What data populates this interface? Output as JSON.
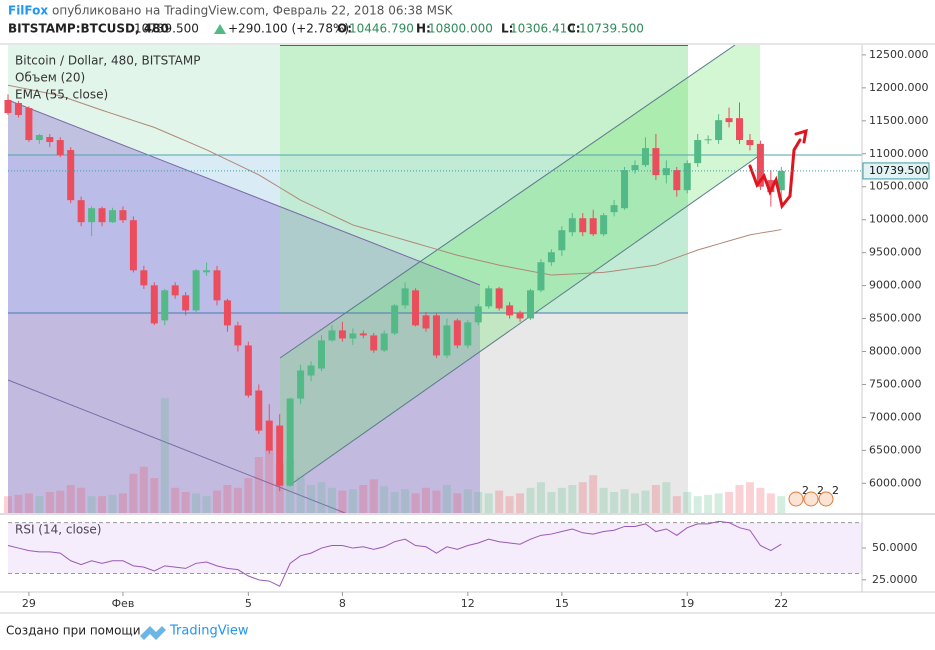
{
  "header": {
    "author": "FilFox",
    "published": "опубликовано на TradingView.com, Февраль 22, 2018 06:38 MSK",
    "symbol": "BITSTAMP:BTCUSD, 480",
    "price": "10739.500",
    "change": "+290.100 (+2.78%)",
    "ohlc": [
      {
        "key": "O:",
        "value": "10446.790"
      },
      {
        "key": "H:",
        "value": "10800.000"
      },
      {
        "key": "L:",
        "value": "10306.410"
      },
      {
        "key": "C:",
        "value": "10739.500"
      }
    ]
  },
  "chart_data": {
    "type": "candlestick",
    "title": "Bitcoin / Dollar, 480, BITSTAMP",
    "categories": [
      null,
      null,
      "29",
      null,
      null,
      null,
      null,
      null,
      null,
      null,
      null,
      "Фев",
      null,
      null,
      null,
      null,
      null,
      null,
      null,
      null,
      null,
      null,
      null,
      "5",
      null,
      null,
      null,
      null,
      null,
      null,
      null,
      null,
      "8",
      null,
      null,
      null,
      null,
      null,
      null,
      null,
      null,
      null,
      null,
      null,
      "12",
      null,
      null,
      null,
      null,
      null,
      null,
      null,
      null,
      "15",
      null,
      null,
      null,
      null,
      null,
      null,
      null,
      null,
      null,
      null,
      null,
      "19",
      null,
      null,
      null,
      null,
      null,
      null,
      null,
      null,
      "22"
    ],
    "open": [
      11816,
      11770,
      11694,
      11208,
      11254,
      11208,
      11056,
      10296,
      9962,
      10174,
      9962,
      10144,
      9992,
      9232,
      9004,
      8472,
      9004,
      8852,
      8624,
      9202,
      9232,
      8776,
      8396,
      8092,
      7408,
      6952,
      6876,
      5964,
      7286,
      7636,
      7742,
      8168,
      8320,
      8198,
      8274,
      8244,
      8016,
      8274,
      8700,
      8928,
      8548,
      8548,
      7940,
      8472,
      8092,
      8442,
      8685,
      8958,
      8700,
      8594,
      8502,
      8928,
      9354,
      9536,
      9810,
      10022,
      10022,
      9779,
      10114,
      10174,
      10752,
      10828,
      11086,
      10676,
      10752,
      10448,
      10858,
      11208,
      11208,
      11540,
      11540,
      11208,
      11150,
      10600,
      10446.79
    ],
    "high": [
      11900,
      11800,
      11720,
      11300,
      11300,
      11250,
      11100,
      10350,
      10200,
      10200,
      10180,
      10200,
      10050,
      9300,
      9050,
      8950,
      9050,
      8900,
      9250,
      9350,
      9300,
      8800,
      8450,
      8150,
      7500,
      7200,
      7050,
      7300,
      7800,
      7850,
      8250,
      8400,
      8450,
      8350,
      8320,
      8280,
      8320,
      8720,
      9050,
      8960,
      8600,
      8580,
      8500,
      8500,
      8480,
      8720,
      9000,
      8980,
      8750,
      8620,
      8950,
      9400,
      9550,
      9900,
      10100,
      10100,
      10150,
      10100,
      10300,
      10800,
      10900,
      11250,
      11300,
      10900,
      10800,
      10900,
      11300,
      11280,
      11600,
      11700,
      11780,
      11300,
      11200,
      10750,
      10800
    ],
    "low": [
      11590,
      11550,
      11180,
      11150,
      11100,
      10950,
      10250,
      9900,
      9750,
      9900,
      9950,
      9950,
      9200,
      8950,
      8400,
      8400,
      8800,
      8550,
      8600,
      9150,
      8700,
      8300,
      8000,
      7300,
      6750,
      6450,
      5880,
      5950,
      7200,
      7550,
      7700,
      8150,
      8150,
      8100,
      8200,
      7980,
      7990,
      8250,
      8650,
      8380,
      8300,
      7900,
      7900,
      8050,
      8050,
      8400,
      8650,
      8620,
      8500,
      8450,
      8480,
      8900,
      9300,
      9450,
      9750,
      9750,
      9750,
      9750,
      10050,
      10150,
      10700,
      10800,
      10600,
      10550,
      10350,
      10400,
      10800,
      11150,
      11150,
      11400,
      11150,
      11050,
      10450,
      10200,
      10306.41
    ],
    "close": [
      11618,
      11588,
      11208,
      11284,
      11178,
      10980,
      10296,
      9962,
      10174,
      9962,
      10144,
      9992,
      9232,
      9004,
      8426,
      8928,
      8852,
      8624,
      9232,
      9232,
      8776,
      8396,
      8092,
      7332,
      6800,
      6496,
      5964,
      7286,
      7712,
      7788,
      8168,
      8320,
      8198,
      8274,
      8244,
      8016,
      8274,
      8700,
      8958,
      8396,
      8350,
      7940,
      8396,
      8092,
      8442,
      8685,
      8958,
      8654,
      8548,
      8502,
      8928,
      9354,
      9506,
      9840,
      10022,
      9810,
      9779,
      10068,
      10220,
      10752,
      10828,
      11086,
      10676,
      10782,
      10448,
      10858,
      11208,
      11220,
      11510,
      11480,
      11208,
      11132,
      10500,
      10418,
      10739.5
    ],
    "up_color": "#53b987",
    "down_color": "#eb4d5c",
    "ylim": [
      5550,
      12650
    ],
    "yticks": [
      {
        "value": 6000,
        "label": "6000.000"
      },
      {
        "value": 6500,
        "label": "6500.000"
      },
      {
        "value": 7000,
        "label": "7000.000"
      },
      {
        "value": 7500,
        "label": "7500.000"
      },
      {
        "value": 8000,
        "label": "8000.000"
      },
      {
        "value": 8500,
        "label": "8500.000"
      },
      {
        "value": 9000,
        "label": "9000.000"
      },
      {
        "value": 9500,
        "label": "9500.000"
      },
      {
        "value": 10000,
        "label": "10000.000"
      },
      {
        "value": 10500,
        "label": "10500.000"
      },
      {
        "value": 11000,
        "label": "11000.000"
      },
      {
        "value": 11500,
        "label": "11500.000"
      },
      {
        "value": 12000,
        "label": "12000.000"
      },
      {
        "value": 12500,
        "label": "12500.000"
      }
    ],
    "last_price_label": "10739.500",
    "last_price_color": "#3a9ea5",
    "volume": {
      "name": "Объем (20)",
      "lim": [
        0,
        100
      ],
      "values": [
        12,
        13,
        14,
        12,
        15,
        16,
        20,
        18,
        12,
        12,
        13,
        14,
        28,
        33,
        25,
        82,
        18,
        15,
        14,
        12,
        16,
        20,
        18,
        25,
        40,
        45,
        35,
        38,
        26,
        20,
        22,
        18,
        16,
        17,
        20,
        24,
        19,
        15,
        17,
        14,
        18,
        16,
        20,
        14,
        17,
        15,
        14,
        16,
        12,
        14,
        18,
        22,
        15,
        18,
        20,
        22,
        27,
        18,
        15,
        17,
        14,
        16,
        20,
        22,
        12,
        15,
        12,
        13,
        14,
        15,
        20,
        22,
        18,
        14,
        12
      ]
    },
    "ema": {
      "name": "EMA (55, close)",
      "color": "#b08878",
      "values": [
        12040,
        12008,
        11976,
        11944,
        11912,
        11880,
        11825,
        11770,
        11715,
        11660,
        11608,
        11556,
        11504,
        11452,
        11400,
        11332,
        11264,
        11196,
        11128,
        11060,
        10984,
        10908,
        10832,
        10756,
        10680,
        10584,
        10488,
        10392,
        10296,
        10221,
        10146,
        10070,
        9995,
        9920,
        9874,
        9828,
        9782,
        9736,
        9690,
        9644,
        9598,
        9552,
        9506,
        9460,
        9422,
        9385,
        9348,
        9310,
        9280,
        9250,
        9220,
        9190,
        9160,
        9168,
        9176,
        9184,
        9192,
        9200,
        9222,
        9244,
        9266,
        9288,
        9310,
        9368,
        9425,
        9482,
        9540,
        9586,
        9632,
        9678,
        9724,
        9770,
        9797,
        9823,
        9850
      ]
    },
    "rsi": {
      "title": "RSI (14, close)",
      "color": "#9b59b6",
      "ylim": [
        17,
        76
      ],
      "yticks": [
        {
          "value": 50,
          "label": "50.0000"
        },
        {
          "value": 25,
          "label": "25.0000"
        }
      ],
      "band": [
        30,
        70
      ],
      "values": [
        52,
        50,
        48,
        47,
        47,
        46,
        40,
        37,
        40,
        38,
        40,
        40,
        36,
        35,
        32,
        36,
        35,
        34,
        38,
        39,
        36,
        34,
        33,
        28,
        25,
        24,
        20,
        38,
        44,
        46,
        50,
        52,
        52,
        50,
        51,
        49,
        51,
        55,
        57,
        52,
        51,
        46,
        51,
        49,
        52,
        54,
        57,
        55,
        54,
        53,
        57,
        60,
        61,
        63,
        65,
        62,
        61,
        63,
        64,
        67,
        67,
        69,
        63,
        65,
        60,
        66,
        69,
        69,
        71,
        70,
        66,
        64,
        52,
        48,
        53
      ]
    },
    "events": [
      "2",
      "2",
      "2"
    ]
  },
  "footer": {
    "created": "Создано при помощи",
    "brand": "TradingView"
  }
}
